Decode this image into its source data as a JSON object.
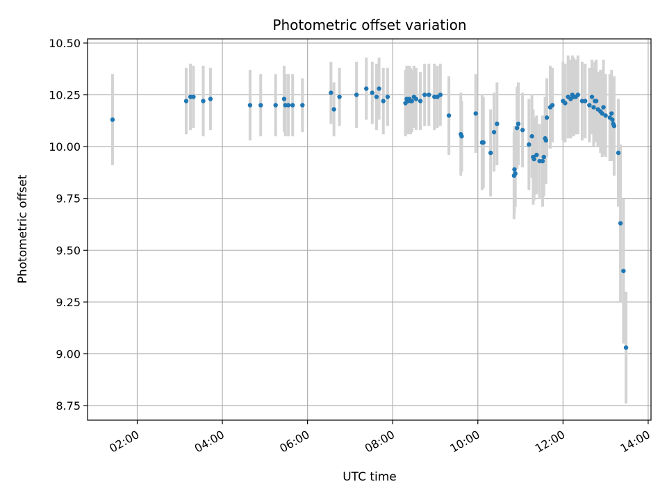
{
  "chart_data": {
    "type": "scatter",
    "title": "Photometric offset variation",
    "xlabel": "UTC time",
    "ylabel": "Photometric offset",
    "x_ticks": [
      "02:00",
      "04:00",
      "06:00",
      "08:00",
      "10:00",
      "12:00",
      "14:00"
    ],
    "x_tick_hours": [
      2,
      4,
      6,
      8,
      10,
      12,
      14
    ],
    "y_ticks": [
      "8.75",
      "9.00",
      "9.25",
      "9.50",
      "9.75",
      "10.00",
      "10.25",
      "10.50"
    ],
    "xlim_hours": [
      0.833,
      14.067
    ],
    "ylim": [
      8.68,
      10.52
    ],
    "grid": true,
    "point_color": "#1f77b4",
    "errorbar_color": "#d3d3d3",
    "series": [
      {
        "x_hours": [
          1.42,
          3.15,
          3.25,
          3.32,
          3.55,
          3.72,
          4.65,
          4.9,
          5.25,
          5.45,
          5.48,
          5.55,
          5.65,
          5.88,
          6.55,
          6.62,
          6.75,
          7.15,
          7.38,
          7.52,
          7.62,
          7.68,
          7.78,
          7.88,
          8.3,
          8.33,
          8.36,
          8.39,
          8.42,
          8.45,
          8.5,
          8.55,
          8.65,
          8.75,
          8.85,
          8.98,
          9.05,
          9.12,
          9.32,
          9.6,
          9.62,
          9.95,
          10.1,
          10.13,
          10.3,
          10.38,
          10.45,
          10.85,
          10.86,
          10.88,
          10.92,
          10.95,
          11.05,
          11.2,
          11.27,
          11.3,
          11.32,
          11.38,
          11.45,
          11.52,
          11.55,
          11.58,
          11.6,
          11.62,
          11.7,
          11.75,
          12.0,
          12.05,
          12.12,
          12.18,
          12.22,
          12.25,
          12.3,
          12.35,
          12.45,
          12.52,
          12.62,
          12.68,
          12.72,
          12.75,
          12.78,
          12.82,
          12.88,
          12.92,
          12.95,
          13.0,
          13.1,
          13.14,
          13.16,
          13.18,
          13.2,
          13.3,
          13.35,
          13.42,
          13.48
        ],
        "y": [
          10.13,
          10.22,
          10.24,
          10.24,
          10.22,
          10.23,
          10.2,
          10.2,
          10.2,
          10.23,
          10.2,
          10.2,
          10.2,
          10.2,
          10.26,
          10.18,
          10.24,
          10.25,
          10.28,
          10.26,
          10.24,
          10.28,
          10.22,
          10.24,
          10.21,
          10.23,
          10.22,
          10.23,
          10.22,
          10.22,
          10.24,
          10.23,
          10.22,
          10.25,
          10.25,
          10.24,
          10.24,
          10.25,
          10.15,
          10.06,
          10.05,
          10.16,
          10.02,
          10.02,
          9.97,
          10.07,
          10.11,
          9.86,
          9.89,
          9.87,
          10.09,
          10.11,
          10.08,
          10.01,
          10.05,
          9.95,
          9.94,
          9.96,
          9.93,
          9.93,
          9.95,
          10.04,
          10.03,
          10.14,
          10.19,
          10.2,
          10.22,
          10.21,
          10.24,
          10.23,
          10.25,
          10.24,
          10.24,
          10.25,
          10.22,
          10.22,
          10.2,
          10.24,
          10.19,
          10.22,
          10.22,
          10.18,
          10.17,
          10.16,
          10.19,
          10.15,
          10.14,
          10.16,
          10.13,
          10.11,
          10.1,
          9.97,
          9.63,
          9.4,
          9.03
        ],
        "err": [
          0.22,
          0.16,
          0.16,
          0.15,
          0.17,
          0.15,
          0.17,
          0.15,
          0.15,
          0.16,
          0.15,
          0.15,
          0.15,
          0.13,
          0.15,
          0.13,
          0.14,
          0.16,
          0.15,
          0.15,
          0.16,
          0.15,
          0.16,
          0.14,
          0.16,
          0.16,
          0.16,
          0.16,
          0.16,
          0.15,
          0.15,
          0.15,
          0.14,
          0.15,
          0.15,
          0.16,
          0.15,
          0.15,
          0.19,
          0.2,
          0.17,
          0.19,
          0.23,
          0.22,
          0.21,
          0.19,
          0.2,
          0.21,
          0.21,
          0.16,
          0.2,
          0.2,
          0.18,
          0.22,
          0.2,
          0.23,
          0.2,
          0.19,
          0.18,
          0.22,
          0.19,
          0.2,
          0.21,
          0.19,
          0.2,
          0.18,
          0.19,
          0.19,
          0.2,
          0.19,
          0.19,
          0.19,
          0.18,
          0.19,
          0.19,
          0.18,
          0.18,
          0.18,
          0.19,
          0.19,
          0.2,
          0.18,
          0.2,
          0.21,
          0.23,
          0.2,
          0.21,
          0.21,
          0.2,
          0.17,
          0.24,
          0.26,
          0.38,
          0.35,
          0.27
        ]
      }
    ]
  }
}
